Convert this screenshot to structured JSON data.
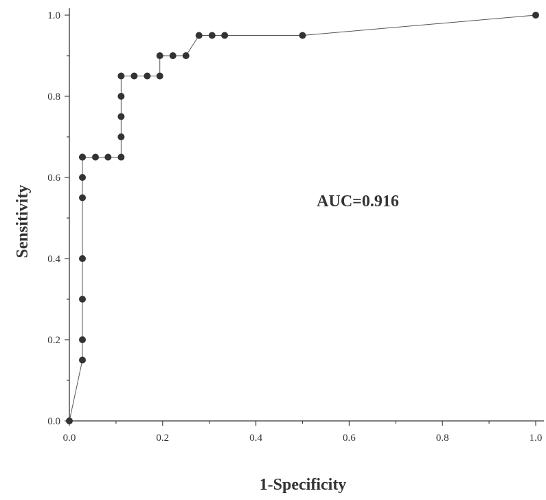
{
  "chart_data": {
    "type": "line",
    "xlabel": "1-Specificity",
    "ylabel": "Sensitivity",
    "xlim": [
      0,
      1
    ],
    "ylim": [
      0,
      1
    ],
    "grid": false,
    "x_ticks": [
      "0.0",
      "0.2",
      "0.4",
      "0.6",
      "0.8",
      "1.0"
    ],
    "y_ticks": [
      "0.0",
      "0.2",
      "0.4",
      "0.6",
      "0.8",
      "1.0"
    ],
    "annotation": "AUC=0.916",
    "series": [
      {
        "x": [
          0.0,
          0.028,
          0.028,
          0.028,
          0.028,
          0.028,
          0.028,
          0.028,
          0.028,
          0.056,
          0.083,
          0.111,
          0.111,
          0.111,
          0.111,
          0.111,
          0.139,
          0.167,
          0.194,
          0.194,
          0.222,
          0.25,
          0.278,
          0.306,
          0.333,
          0.5,
          1.0
        ],
        "y": [
          0.0,
          0.15,
          0.2,
          0.3,
          0.4,
          0.55,
          0.6,
          0.65,
          0.65,
          0.65,
          0.65,
          0.65,
          0.7,
          0.75,
          0.8,
          0.85,
          0.85,
          0.85,
          0.85,
          0.9,
          0.9,
          0.9,
          0.95,
          0.95,
          0.95,
          0.95,
          1.0
        ]
      }
    ],
    "colors": {
      "axis": "#333333",
      "line": "#555555",
      "marker": "#333333"
    }
  }
}
